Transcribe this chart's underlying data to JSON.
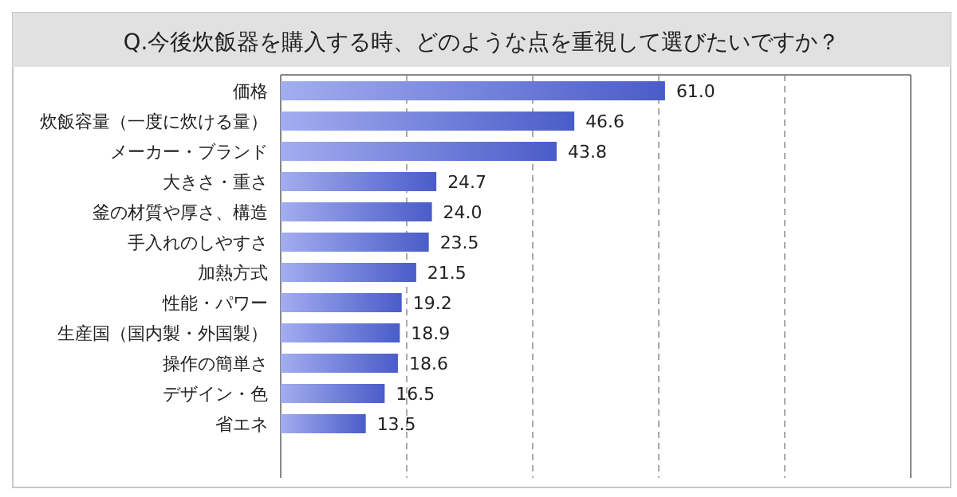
{
  "chart_data": {
    "type": "bar",
    "orientation": "horizontal",
    "title": "Q.今後炊飯器を購入する時、どのような点を重視して選びたいですか？",
    "categories": [
      "価格",
      "炊飯容量（一度に炊ける量）",
      "メーカー・ブランド",
      "大きさ・重さ",
      "釜の材質や厚さ、構造",
      "手入れのしやすさ",
      "加熱方式",
      "性能・パワー",
      "生産国（国内製・外国製）",
      "操作の簡単さ",
      "デザイン・色",
      "省エネ"
    ],
    "values": [
      61.0,
      46.6,
      43.8,
      24.7,
      24.0,
      23.5,
      21.5,
      19.2,
      18.9,
      18.6,
      16.5,
      13.5
    ],
    "color": "#4a5cc8",
    "xlim": [
      0,
      100
    ],
    "xticks": [
      {
        "value": 0,
        "label": null
      },
      {
        "value": 20,
        "label": null
      },
      {
        "value": 40,
        "label": null
      },
      {
        "value": 60,
        "label": null
      },
      {
        "value": 80,
        "label": null
      },
      {
        "value": 100,
        "label": null
      }
    ],
    "value_labels": [
      "61.0",
      "46.6",
      "43.8",
      "24.7",
      "24.0",
      "23.5",
      "21.5",
      "19.2",
      "18.9",
      "18.6",
      "16.5",
      "13.5"
    ],
    "grid": "x",
    "tick_labels": "y"
  }
}
